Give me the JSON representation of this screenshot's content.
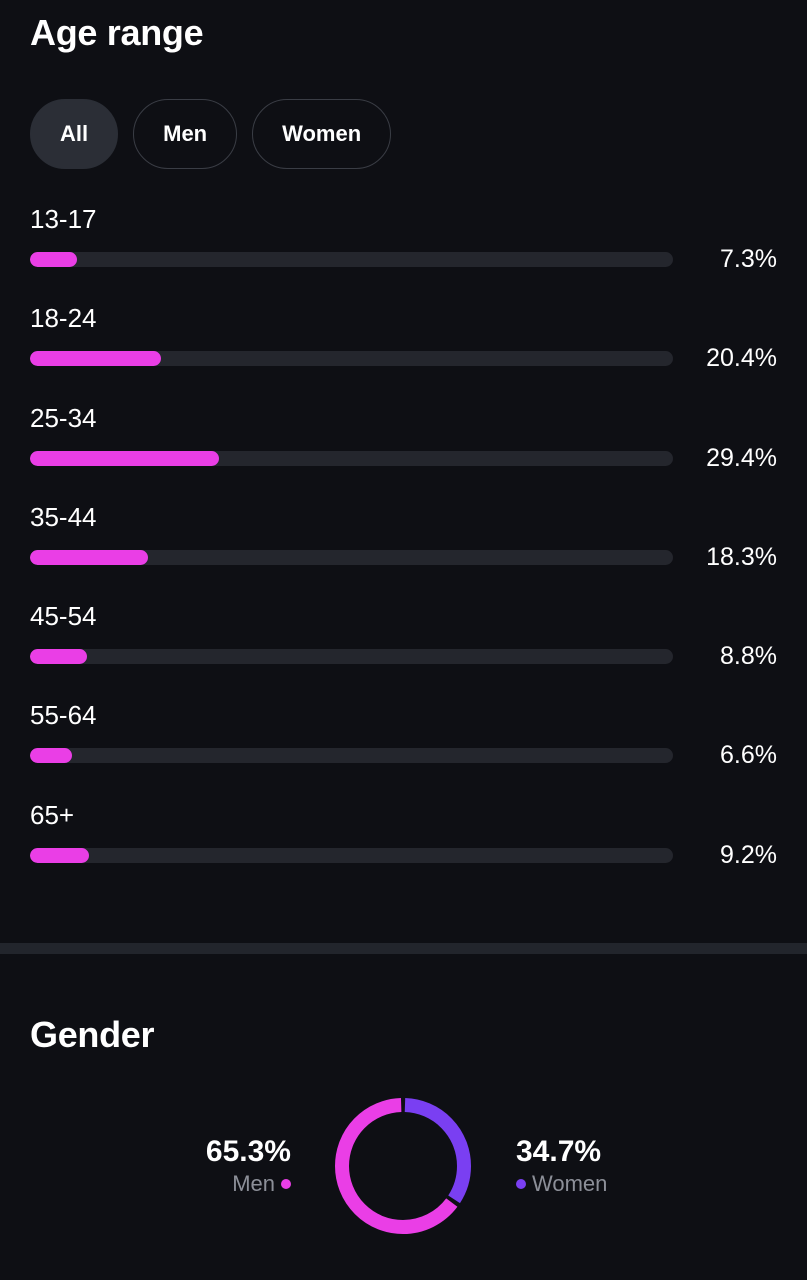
{
  "age_section": {
    "title": "Age range",
    "filters": [
      {
        "label": "All",
        "active": true
      },
      {
        "label": "Men",
        "active": false
      },
      {
        "label": "Women",
        "active": false
      }
    ],
    "bar_color": "#ea3ee6",
    "rows": [
      {
        "label": "13-17",
        "value": "7.3%",
        "fraction": 0.073
      },
      {
        "label": "18-24",
        "value": "20.4%",
        "fraction": 0.204
      },
      {
        "label": "25-34",
        "value": "29.4%",
        "fraction": 0.294
      },
      {
        "label": "35-44",
        "value": "18.3%",
        "fraction": 0.183
      },
      {
        "label": "45-54",
        "value": "8.8%",
        "fraction": 0.088
      },
      {
        "label": "55-64",
        "value": "6.6%",
        "fraction": 0.066
      },
      {
        "label": "65+",
        "value": "9.2%",
        "fraction": 0.092
      }
    ]
  },
  "gender_section": {
    "title": "Gender",
    "men": {
      "value": "65.3%",
      "label": "Men",
      "fraction": 0.653,
      "color": "#ea3ee6"
    },
    "women": {
      "value": "34.7%",
      "label": "Women",
      "fraction": 0.347,
      "color": "#7a3ff2"
    }
  }
}
